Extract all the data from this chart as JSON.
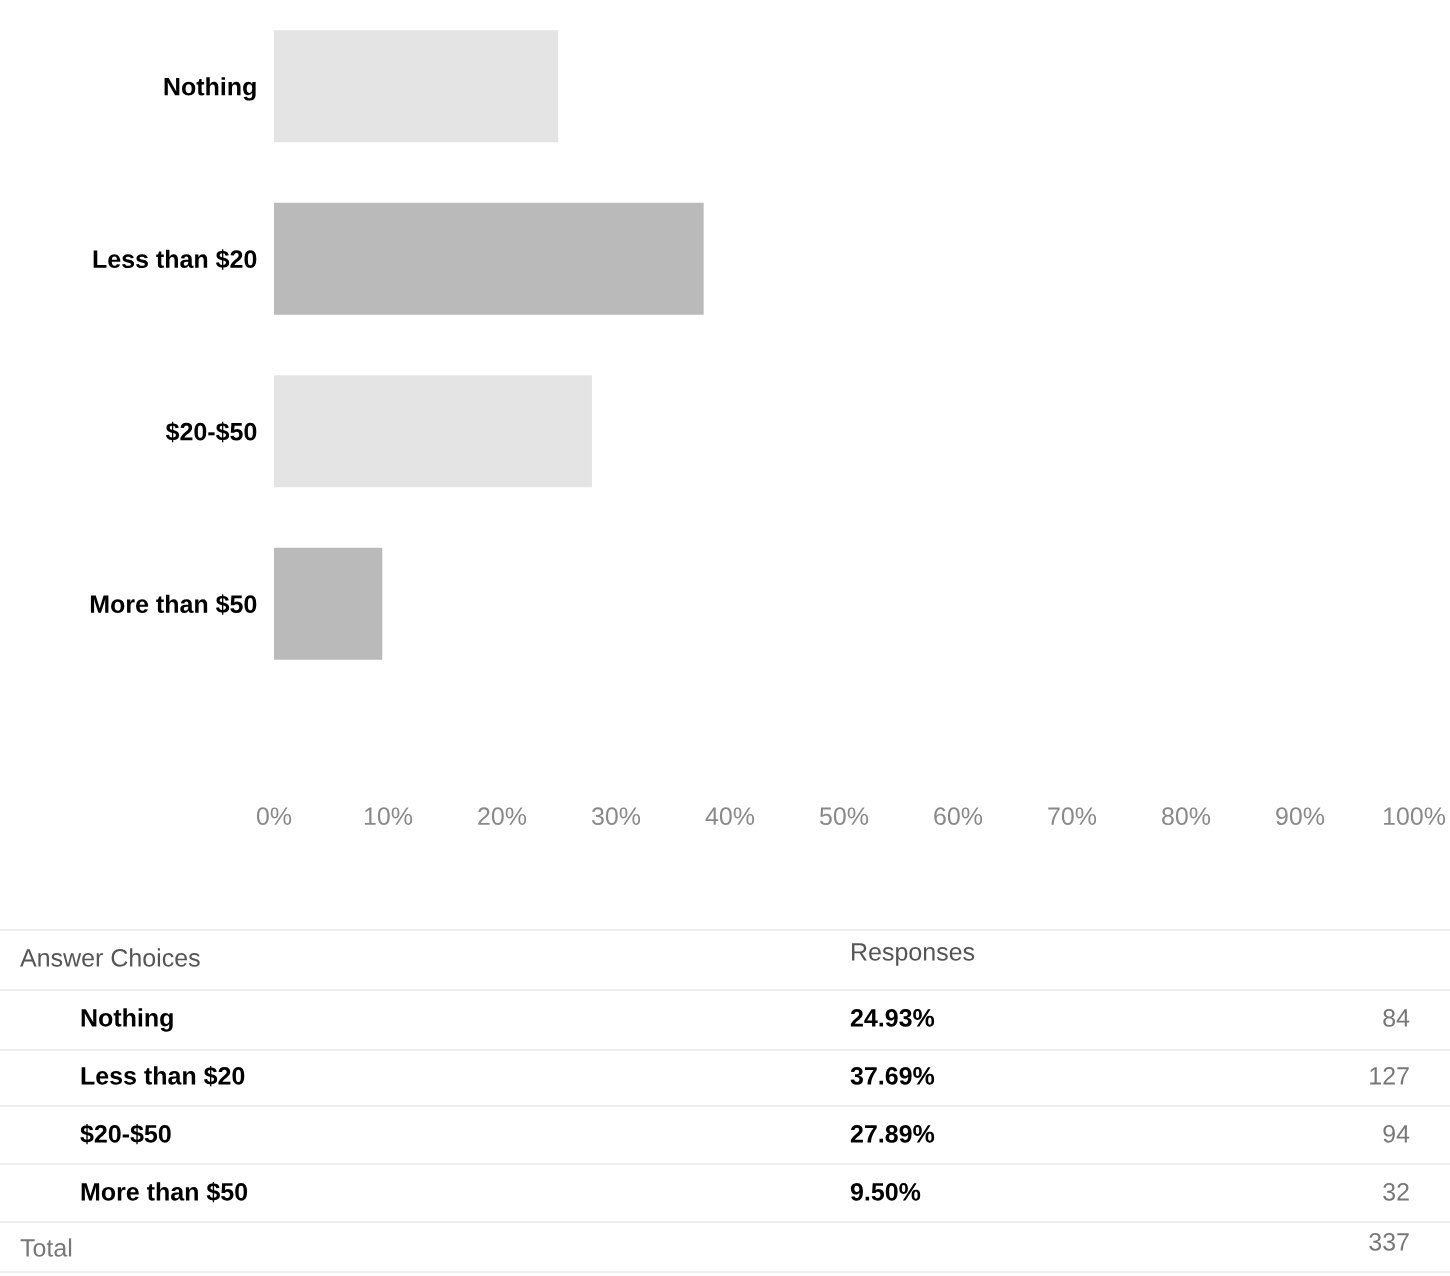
{
  "chart_data": {
    "type": "bar",
    "orientation": "horizontal",
    "categories": [
      "Nothing",
      "Less than $20",
      "$20-$50",
      "More than $50"
    ],
    "values": [
      24.93,
      37.69,
      27.89,
      9.5
    ],
    "colors": [
      "#e4e4e4",
      "#bababa",
      "#e4e4e4",
      "#bababa"
    ],
    "xlim": [
      0,
      100
    ],
    "xticks": [
      {
        "value": 0,
        "label": "0%"
      },
      {
        "value": 10,
        "label": "10%"
      },
      {
        "value": 20,
        "label": "20%"
      },
      {
        "value": 30,
        "label": "30%"
      },
      {
        "value": 40,
        "label": "40%"
      },
      {
        "value": 50,
        "label": "50%"
      },
      {
        "value": 60,
        "label": "60%"
      },
      {
        "value": 70,
        "label": "70%"
      },
      {
        "value": 80,
        "label": "80%"
      },
      {
        "value": 90,
        "label": "90%"
      },
      {
        "value": 100,
        "label": "100%"
      }
    ],
    "grid": false,
    "legend": false,
    "annotations": [
      "Answer Choices",
      "Responses",
      "84",
      "127",
      "94",
      "32",
      "Total",
      "337",
      "24.93%",
      "37.69%",
      "27.89%",
      "9.50%"
    ]
  }
}
